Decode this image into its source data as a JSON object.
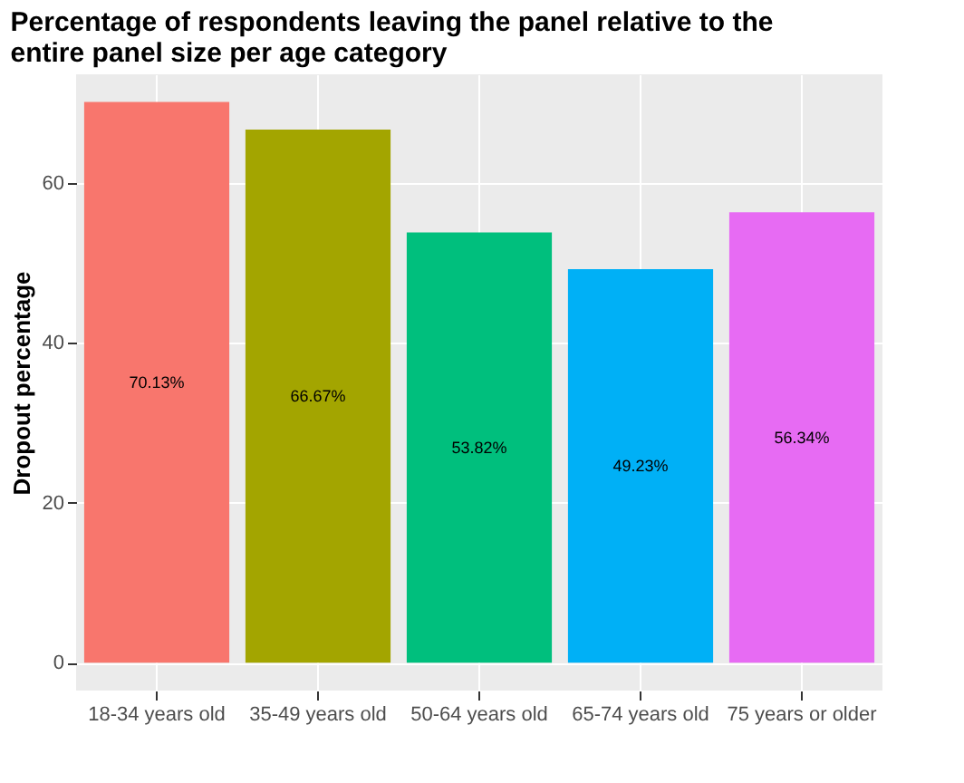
{
  "chart_data": {
    "type": "bar",
    "title": "Percentage of respondents leaving the panel relative to the entire panel size per age category",
    "ylabel": "Dropout percentage",
    "categories": [
      "18-34 years old",
      "35-49 years old",
      "50-64 years old",
      "65-74 years old",
      "75 years or older"
    ],
    "values": [
      70.13,
      66.67,
      53.82,
      49.23,
      56.34
    ],
    "colors": [
      "#f8766d",
      "#a3a500",
      "#00bf7d",
      "#00b0f6",
      "#e76bf3"
    ],
    "value_labels": [
      "70.13%",
      "66.67%",
      "53.82%",
      "49.23%",
      "56.34%"
    ],
    "ylim": [
      -3.5,
      73.6
    ],
    "yticks": [
      0,
      20,
      40,
      60
    ],
    "grid": true
  }
}
